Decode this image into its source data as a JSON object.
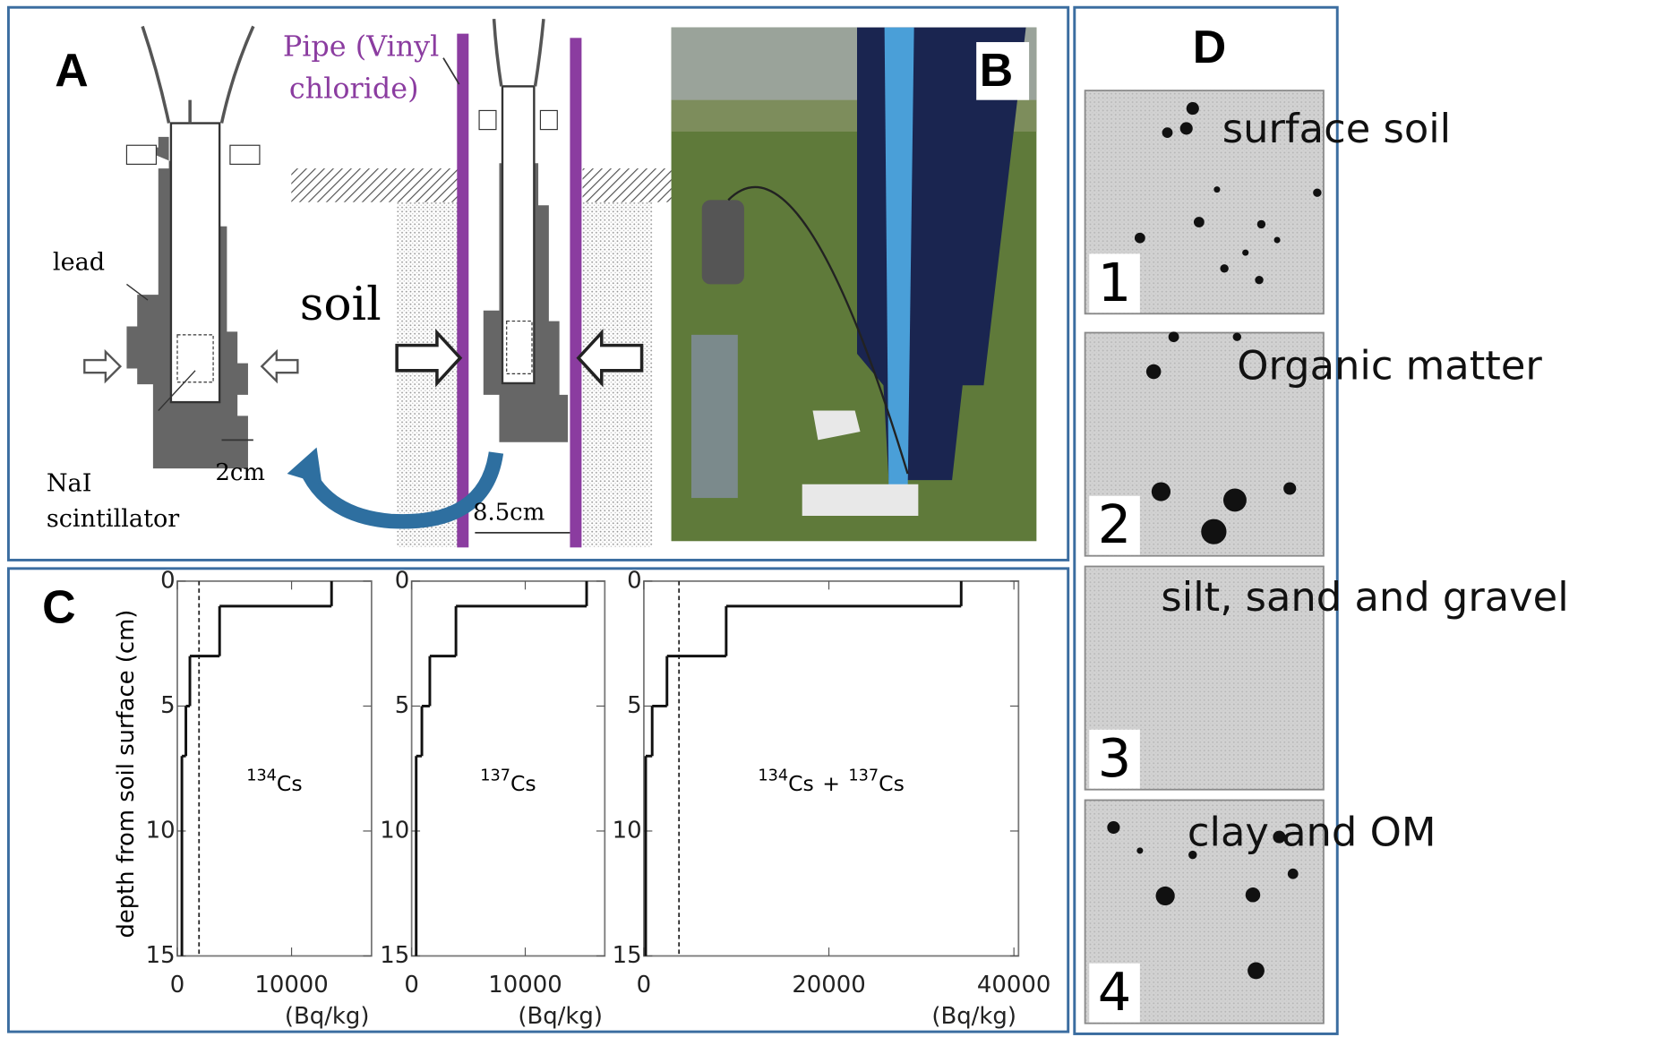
{
  "panels": {
    "A": {
      "label": "A",
      "pipe_label": [
        "Pipe (Vinyl",
        "chloride)"
      ],
      "lead": "lead",
      "soil": "soil",
      "nai_label": [
        "NaI",
        "scintillator"
      ],
      "dim_detector": "2cm",
      "dim_pipe": "8.5cm"
    },
    "B": {
      "label": "B"
    },
    "C": {
      "label": "C",
      "y_label": "depth from soil surface (cm)"
    },
    "D": {
      "label": "D",
      "images": [
        {
          "number": "1",
          "caption": "surface soil"
        },
        {
          "number": "2",
          "caption": "Organic matter"
        },
        {
          "number": "3",
          "caption": "silt, sand and gravel"
        },
        {
          "number": "4",
          "caption": "clay and OM"
        }
      ]
    }
  },
  "chart_data": [
    {
      "type": "step",
      "nuclides": [
        {
          "mass": "134",
          "element": "Cs"
        }
      ],
      "x_label": "(Bq/kg)",
      "depth_edges": [
        0,
        1,
        3,
        5,
        7,
        15
      ],
      "values": [
        13500,
        3700,
        1100,
        750,
        400
      ],
      "dashed_x": 1900,
      "xlim": [
        0,
        17000
      ],
      "xticks": [
        0,
        10000
      ],
      "ylim": [
        0,
        15
      ],
      "yticks": [
        0,
        5,
        10,
        15
      ],
      "y_inverted": true,
      "color": "#111111"
    },
    {
      "type": "step",
      "nuclides": [
        {
          "mass": "137",
          "element": "Cs"
        }
      ],
      "x_label": "(Bq/kg)",
      "depth_edges": [
        0,
        1,
        3,
        5,
        7,
        15
      ],
      "values": [
        15400,
        3900,
        1600,
        900,
        400
      ],
      "xlim": [
        0,
        17000
      ],
      "xticks": [
        0,
        10000
      ],
      "ylim": [
        0,
        15
      ],
      "yticks": [
        0,
        5,
        10,
        15
      ],
      "y_inverted": true,
      "color": "#111111"
    },
    {
      "type": "step",
      "nuclides": [
        {
          "mass": "134",
          "element": "Cs"
        },
        {
          "mass": "137",
          "element": "Cs"
        }
      ],
      "joiner": "+",
      "x_label": "(Bq/kg)",
      "depth_edges": [
        0,
        1,
        3,
        5,
        7,
        15
      ],
      "values": [
        34300,
        8900,
        2500,
        900,
        200
      ],
      "dashed_x": 3800,
      "xlim": [
        0,
        40500
      ],
      "xticks": [
        0,
        20000,
        40000
      ],
      "ylim": [
        0,
        15
      ],
      "yticks": [
        0,
        5,
        10,
        15
      ],
      "y_inverted": true,
      "color": "#111111"
    }
  ]
}
